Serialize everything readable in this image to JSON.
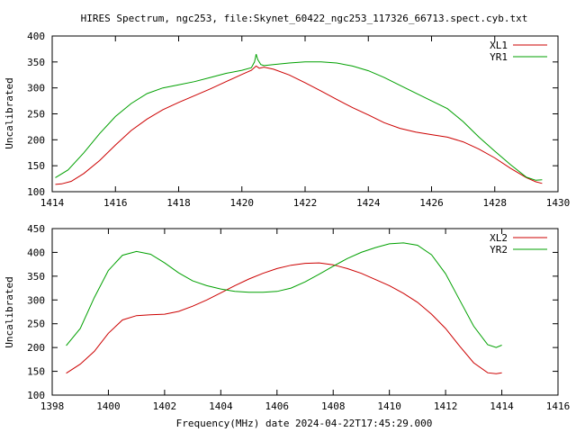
{
  "title": "HIRES Spectrum, ngc253, file:Skynet_60422_ngc253_117326_66713.spect.cyb.txt",
  "xlabel": "Frequency(MHz) date 2024-04-22T17:45:29.000",
  "chart_data": [
    {
      "type": "line",
      "ylabel": "Uncalibrated",
      "xlim": [
        1414,
        1430
      ],
      "ylim": [
        100,
        400
      ],
      "xticks": [
        1414,
        1416,
        1418,
        1420,
        1422,
        1424,
        1426,
        1428,
        1430
      ],
      "yticks": [
        100,
        150,
        200,
        250,
        300,
        350,
        400
      ],
      "legend_position": "top-right",
      "grid": false,
      "series": [
        {
          "name": "XL1",
          "color": "#cc0000",
          "points": [
            [
              1414.1,
              114
            ],
            [
              1414.3,
              115
            ],
            [
              1414.6,
              120
            ],
            [
              1415.0,
              135
            ],
            [
              1415.5,
              160
            ],
            [
              1416.0,
              190
            ],
            [
              1416.5,
              218
            ],
            [
              1417.0,
              240
            ],
            [
              1417.5,
              258
            ],
            [
              1418.0,
              272
            ],
            [
              1418.5,
              285
            ],
            [
              1419.0,
              298
            ],
            [
              1419.5,
              312
            ],
            [
              1420.0,
              326
            ],
            [
              1420.3,
              334
            ],
            [
              1420.45,
              342
            ],
            [
              1420.55,
              338
            ],
            [
              1420.7,
              340
            ],
            [
              1421.0,
              336
            ],
            [
              1421.5,
              325
            ],
            [
              1422.0,
              310
            ],
            [
              1422.5,
              294
            ],
            [
              1423.0,
              278
            ],
            [
              1423.5,
              262
            ],
            [
              1424.0,
              248
            ],
            [
              1424.5,
              233
            ],
            [
              1425.0,
              222
            ],
            [
              1425.5,
              215
            ],
            [
              1426.0,
              210
            ],
            [
              1426.5,
              205
            ],
            [
              1427.0,
              196
            ],
            [
              1427.5,
              182
            ],
            [
              1428.0,
              165
            ],
            [
              1428.5,
              145
            ],
            [
              1429.0,
              127
            ],
            [
              1429.3,
              119
            ],
            [
              1429.5,
              116
            ]
          ]
        },
        {
          "name": "YR1",
          "color": "#00a000",
          "points": [
            [
              1414.1,
              127
            ],
            [
              1414.5,
              142
            ],
            [
              1415.0,
              175
            ],
            [
              1415.5,
              212
            ],
            [
              1416.0,
              245
            ],
            [
              1416.5,
              270
            ],
            [
              1417.0,
              289
            ],
            [
              1417.5,
              300
            ],
            [
              1418.0,
              306
            ],
            [
              1418.5,
              312
            ],
            [
              1419.0,
              320
            ],
            [
              1419.5,
              328
            ],
            [
              1420.0,
              334
            ],
            [
              1420.3,
              339
            ],
            [
              1420.4,
              350
            ],
            [
              1420.45,
              365
            ],
            [
              1420.5,
              355
            ],
            [
              1420.6,
              345
            ],
            [
              1420.7,
              343
            ],
            [
              1421.0,
              345
            ],
            [
              1421.5,
              348
            ],
            [
              1422.0,
              350
            ],
            [
              1422.5,
              350
            ],
            [
              1423.0,
              348
            ],
            [
              1423.5,
              342
            ],
            [
              1424.0,
              333
            ],
            [
              1424.5,
              320
            ],
            [
              1425.0,
              305
            ],
            [
              1425.5,
              290
            ],
            [
              1426.0,
              275
            ],
            [
              1426.5,
              260
            ],
            [
              1427.0,
              235
            ],
            [
              1427.5,
              205
            ],
            [
              1428.0,
              178
            ],
            [
              1428.5,
              152
            ],
            [
              1429.0,
              128
            ],
            [
              1429.3,
              122
            ],
            [
              1429.5,
              123
            ]
          ]
        }
      ]
    },
    {
      "type": "line",
      "ylabel": "Uncalibrated",
      "xlim": [
        1398,
        1416
      ],
      "ylim": [
        100,
        450
      ],
      "xticks": [
        1398,
        1400,
        1402,
        1404,
        1406,
        1408,
        1410,
        1412,
        1414,
        1416
      ],
      "yticks": [
        100,
        150,
        200,
        250,
        300,
        350,
        400,
        450
      ],
      "legend_position": "top-right",
      "grid": false,
      "series": [
        {
          "name": "XL2",
          "color": "#cc0000",
          "points": [
            [
              1398.5,
              146
            ],
            [
              1399.0,
              165
            ],
            [
              1399.5,
              192
            ],
            [
              1400.0,
              230
            ],
            [
              1400.5,
              258
            ],
            [
              1401.0,
              267
            ],
            [
              1401.5,
              269
            ],
            [
              1402.0,
              270
            ],
            [
              1402.5,
              276
            ],
            [
              1403.0,
              287
            ],
            [
              1403.5,
              300
            ],
            [
              1404.0,
              315
            ],
            [
              1404.5,
              330
            ],
            [
              1405.0,
              344
            ],
            [
              1405.5,
              356
            ],
            [
              1406.0,
              366
            ],
            [
              1406.5,
              373
            ],
            [
              1407.0,
              377
            ],
            [
              1407.5,
              378
            ],
            [
              1408.0,
              374
            ],
            [
              1408.5,
              366
            ],
            [
              1409.0,
              356
            ],
            [
              1409.5,
              343
            ],
            [
              1410.0,
              330
            ],
            [
              1410.5,
              314
            ],
            [
              1411.0,
              295
            ],
            [
              1411.5,
              270
            ],
            [
              1412.0,
              240
            ],
            [
              1412.5,
              203
            ],
            [
              1413.0,
              168
            ],
            [
              1413.5,
              147
            ],
            [
              1413.8,
              145
            ],
            [
              1414.0,
              147
            ]
          ]
        },
        {
          "name": "YR2",
          "color": "#00a000",
          "points": [
            [
              1398.5,
              204
            ],
            [
              1399.0,
              240
            ],
            [
              1399.5,
              305
            ],
            [
              1400.0,
              362
            ],
            [
              1400.5,
              394
            ],
            [
              1401.0,
              402
            ],
            [
              1401.5,
              396
            ],
            [
              1402.0,
              378
            ],
            [
              1402.5,
              357
            ],
            [
              1403.0,
              340
            ],
            [
              1403.5,
              330
            ],
            [
              1404.0,
              323
            ],
            [
              1404.5,
              318
            ],
            [
              1405.0,
              316
            ],
            [
              1405.5,
              316
            ],
            [
              1406.0,
              318
            ],
            [
              1406.5,
              325
            ],
            [
              1407.0,
              338
            ],
            [
              1407.5,
              354
            ],
            [
              1408.0,
              371
            ],
            [
              1408.5,
              387
            ],
            [
              1409.0,
              400
            ],
            [
              1409.5,
              410
            ],
            [
              1410.0,
              418
            ],
            [
              1410.5,
              420
            ],
            [
              1411.0,
              415
            ],
            [
              1411.5,
              395
            ],
            [
              1412.0,
              355
            ],
            [
              1412.5,
              300
            ],
            [
              1413.0,
              245
            ],
            [
              1413.5,
              206
            ],
            [
              1413.8,
              200
            ],
            [
              1414.0,
              205
            ]
          ]
        }
      ]
    }
  ]
}
